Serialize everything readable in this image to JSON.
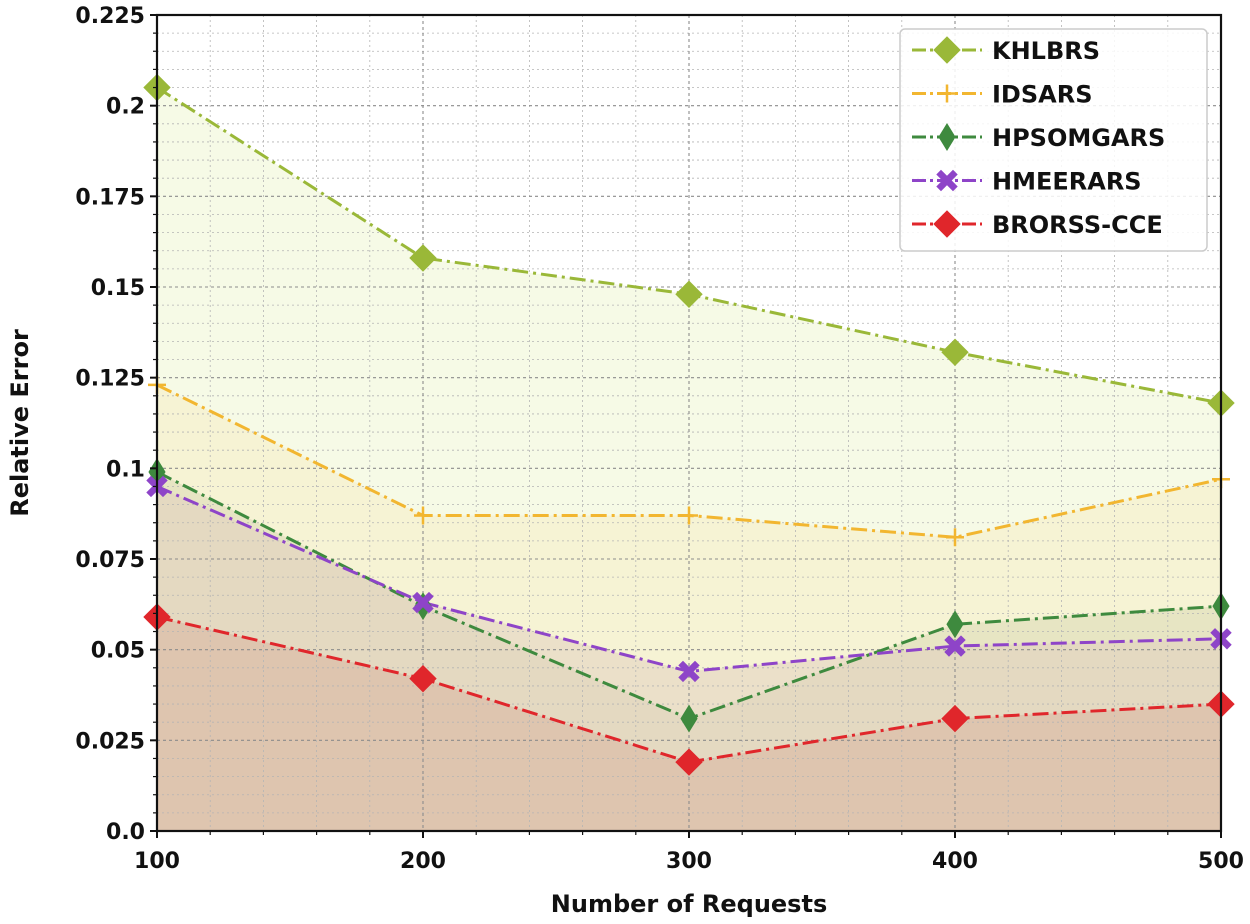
{
  "chart_data": {
    "type": "line",
    "title": "",
    "xlabel": "Number of Requests",
    "ylabel": "Relative Error",
    "x": [
      100,
      200,
      300,
      400,
      500
    ],
    "xlim": [
      100,
      500
    ],
    "ylim": [
      0,
      0.225
    ],
    "xticks": [
      "100",
      "200",
      "300",
      "400",
      "500"
    ],
    "yticks": [
      "0.0",
      "0.025",
      "0.05",
      "0.075",
      "0.1",
      "0.125",
      "0.15",
      "0.175",
      "0.2",
      "0.225"
    ],
    "grid": true,
    "legend_position": "top-right",
    "series": [
      {
        "name": "KHLBRS",
        "values": [
          0.205,
          0.158,
          0.148,
          0.132,
          0.118
        ],
        "color": "#9ab838",
        "fill": "#eef5d2",
        "marker": "diamond",
        "style": "dashdot"
      },
      {
        "name": "IDSARS",
        "values": [
          0.123,
          0.087,
          0.087,
          0.081,
          0.097
        ],
        "color": "#f2b630",
        "fill": "#f5ecc5",
        "marker": "plus",
        "style": "dashdot"
      },
      {
        "name": "HPSOMGARS",
        "values": [
          0.099,
          0.062,
          0.031,
          0.057,
          0.062
        ],
        "color": "#3e8a3e",
        "fill": "#dad8b4",
        "marker": "thin-diamond",
        "style": "dashdot"
      },
      {
        "name": "HMEERARS",
        "values": [
          0.095,
          0.063,
          0.044,
          0.051,
          0.053
        ],
        "color": "#8e44c8",
        "fill": "#e2cfbf",
        "marker": "x-filled",
        "style": "dashdot"
      },
      {
        "name": "BRORSS-CCE",
        "values": [
          0.059,
          0.042,
          0.019,
          0.031,
          0.035
        ],
        "color": "#e0262b",
        "fill": "#d9b5a0",
        "marker": "diamond",
        "style": "dashdot"
      }
    ]
  }
}
